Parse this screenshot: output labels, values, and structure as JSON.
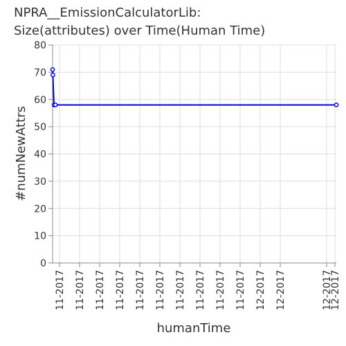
{
  "chart_data": {
    "type": "line",
    "title_lines": [
      "NPRA__EmissionCalculatorLib:",
      "Size(attributes) over Time(Human Time)"
    ],
    "xlabel": "humanTime",
    "ylabel": "#numNewAttrs",
    "ylim": [
      0,
      80
    ],
    "y_ticks": [
      0,
      10,
      20,
      30,
      40,
      50,
      60,
      70,
      80
    ],
    "x_tick_labels": [
      "11-2017",
      "11-2017",
      "11-2017",
      "11-2017",
      "11-2017",
      "11-2017",
      "11-2017",
      "11-2017",
      "11-2017",
      "11-2017",
      "12-2017",
      "12-2017",
      "12-2017",
      "12-2017"
    ],
    "grid": true,
    "series": [
      {
        "color": "#0000dd",
        "x": [
          0,
          0.1,
          0.5,
          1.0,
          100
        ],
        "values": [
          71,
          69,
          58,
          58,
          58
        ]
      }
    ]
  }
}
